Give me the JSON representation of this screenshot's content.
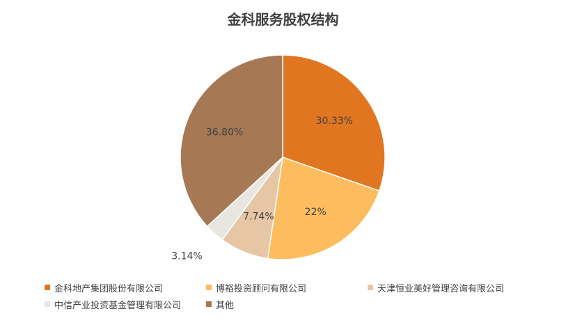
{
  "chart_data": {
    "type": "pie",
    "title": "金科服务股权结构",
    "slices": [
      {
        "name": "金科地产集团股份有限公司",
        "value": 30.33,
        "label": "30.33%",
        "color": "#E07620"
      },
      {
        "name": "博裕投资顾问有限公司",
        "value": 22,
        "label": "22%",
        "color": "#FDBD5E"
      },
      {
        "name": "天津恒业美好管理咨询有限公司",
        "value": 7.74,
        "label": "7.74%",
        "color": "#E6C6A4"
      },
      {
        "name": "中信产业投资基金管理有限公司",
        "value": 3.14,
        "label": "3.14%",
        "color": "#E8E6E0"
      },
      {
        "name": "其他",
        "value": 36.8,
        "label": "36.80%",
        "color": "#A67854"
      }
    ],
    "legend_position": "bottom"
  }
}
